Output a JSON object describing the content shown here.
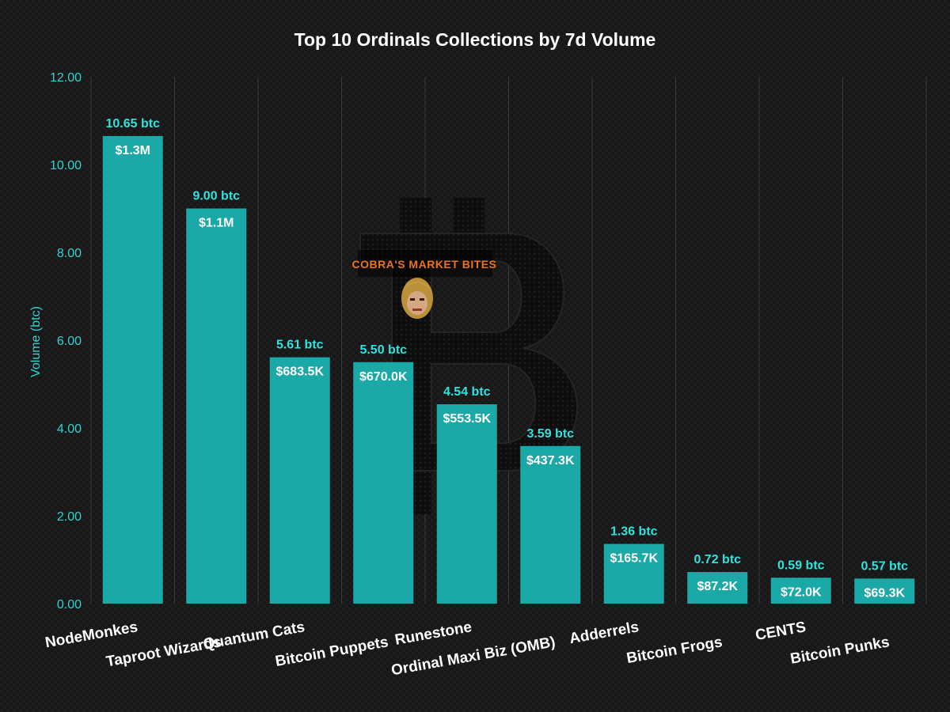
{
  "chart_data": {
    "type": "bar",
    "title": "Top 10 Ordinals Collections by 7d Volume",
    "ylabel": "Volume (btc)",
    "xlabel": "",
    "ylim": [
      0,
      12
    ],
    "yticks": [
      "0.00",
      "2.00",
      "4.00",
      "6.00",
      "8.00",
      "10.00",
      "12.00"
    ],
    "grid": "vertical",
    "categories": [
      "NodeMonkes",
      "Taproot Wizards",
      "Quantum Cats",
      "Bitcoin Puppets",
      "Runestone",
      "Ordinal Maxi Biz (OMB)",
      "Adderrels",
      "Bitcoin Frogs",
      "CENTS",
      "Bitcoin Punks"
    ],
    "values": [
      10.65,
      9.0,
      5.61,
      5.5,
      4.54,
      3.59,
      1.36,
      0.72,
      0.59,
      0.57
    ],
    "btc_labels": [
      "10.65 btc",
      "9.00 btc",
      "5.61 btc",
      "5.50 btc",
      "4.54 btc",
      "3.59 btc",
      "1.36 btc",
      "0.72 btc",
      "0.59 btc",
      "0.57 btc"
    ],
    "usd_labels": [
      "$1.3M",
      "$1.1M",
      "$683.5K",
      "$670.0K",
      "$553.5K",
      "$437.3K",
      "$165.7K",
      "$87.2K",
      "$72.0K",
      "$69.3K"
    ],
    "colors": {
      "bar": "#1aa9a6",
      "btc_label": "#2fe3df",
      "usd_label": "#ffffff",
      "axis_text": "#2fd4d0",
      "background": "#161616"
    }
  },
  "watermark": {
    "text": "COBRA'S MARKET BITES",
    "icon": "bitcoin-logo-icon",
    "avatar": "cartoon-avatar-icon"
  }
}
